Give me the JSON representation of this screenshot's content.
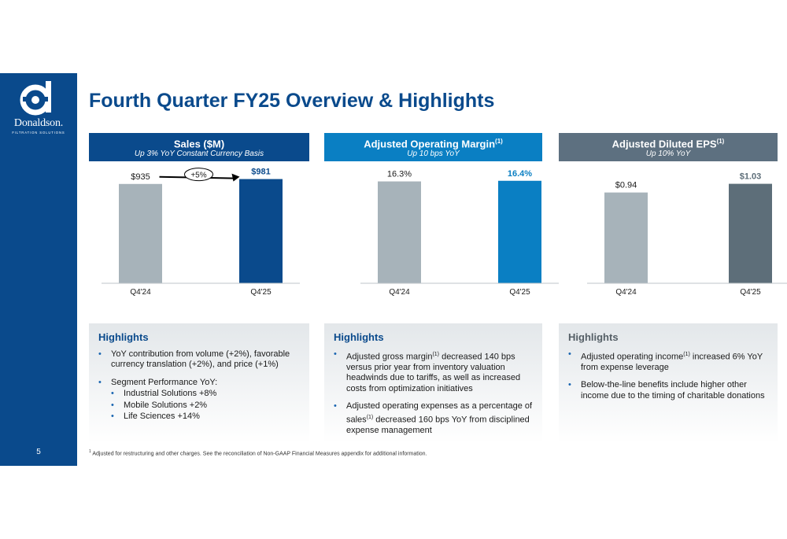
{
  "logo": {
    "name": "Donaldson.",
    "tagline": "FILTRATION SOLUTIONS"
  },
  "page_number": "5",
  "title": "Fourth Quarter FY25 Overview & Highlights",
  "panels": [
    {
      "title": "Sales ($M)",
      "sup": "",
      "subtitle": "Up 3% YoY Constant Currency Basis",
      "color": "#0a4a8c"
    },
    {
      "title": "Adjusted Operating Margin",
      "sup": "(1)",
      "subtitle": "Up 10 bps YoY",
      "color": "#0a7fc3"
    },
    {
      "title": "Adjusted Diluted EPS",
      "sup": "(1)",
      "subtitle": "Up 10% YoY",
      "color": "#5d7080"
    }
  ],
  "chart_data": [
    {
      "type": "bar",
      "categories": [
        "Q4'24",
        "Q4'25"
      ],
      "values": [
        935,
        981
      ],
      "data_labels": [
        "$935",
        "$981"
      ],
      "colors": [
        "#a7b3ba",
        "#0a4a8c"
      ],
      "ylim": [
        0,
        1000
      ],
      "annotation": "+5%"
    },
    {
      "type": "bar",
      "categories": [
        "Q4'24",
        "Q4'25"
      ],
      "values": [
        16.3,
        16.4
      ],
      "data_labels": [
        "16.3%",
        "16.4%"
      ],
      "colors": [
        "#a7b3ba",
        "#0a7fc3"
      ],
      "ylim": [
        0,
        17
      ]
    },
    {
      "type": "bar",
      "categories": [
        "Q4'24",
        "Q4'25"
      ],
      "values": [
        0.94,
        1.03
      ],
      "data_labels": [
        "$0.94",
        "$1.03"
      ],
      "colors": [
        "#a7b3ba",
        "#5d6e79"
      ],
      "ylim": [
        0,
        1.1
      ]
    }
  ],
  "highlights": [
    {
      "title": "Highlights",
      "bullets": [
        {
          "text": "YoY contribution from volume (+2%), favorable currency translation (+2%), and price (+1%)"
        },
        {
          "text": "Segment Performance YoY:",
          "sub": [
            "Industrial Solutions +8%",
            "Mobile Solutions +2%",
            "Life Sciences +14%"
          ]
        }
      ]
    },
    {
      "title": "Highlights",
      "bullets": [
        {
          "pre": "Adjusted gross margin",
          "sup": "(1)",
          "post": " decreased 140 bps versus prior year from inventory valuation headwinds due to tariffs, as well as increased costs from optimization initiatives"
        },
        {
          "pre": "Adjusted operating expenses as a percentage of sales",
          "sup": "(1)",
          "post": " decreased 160 bps YoY from disciplined expense management"
        }
      ]
    },
    {
      "title": "Highlights",
      "bullets": [
        {
          "pre": "Adjusted operating income",
          "sup": "(1)",
          "post": " increased 6% YoY from expense leverage"
        },
        {
          "text": "Below-the-line benefits include higher other income due to the timing of charitable donations"
        }
      ]
    }
  ],
  "footnote": {
    "sup": "1",
    "text": " Adjusted for restructuring and other charges. See the reconciliation of Non-GAAP Financial Measures appendix for additional information."
  }
}
